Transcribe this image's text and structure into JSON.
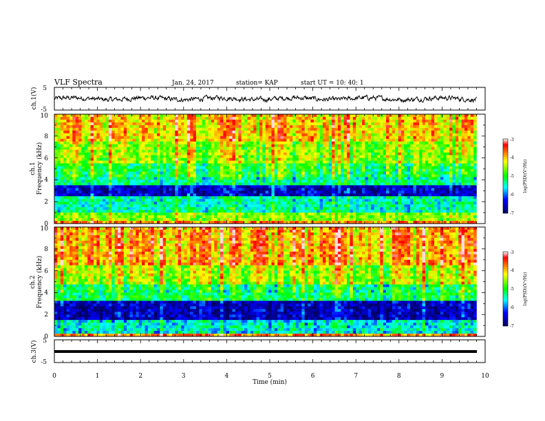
{
  "header": {
    "title": "VLF Spectra",
    "date": "Jan. 24, 2017",
    "station": "station= KAP",
    "start": "start UT =   10: 40: 1"
  },
  "chart_data": [
    {
      "type": "line",
      "name": "ch1-waveform",
      "ylabel": "ch.1(V)",
      "ylim": [
        -5,
        5
      ],
      "ytick_labels": [
        "5",
        "-5"
      ],
      "xlim": [
        0,
        10
      ],
      "note_values": "noisy waveform oscillating roughly between -1 and +1 V across 0-9.8 min"
    },
    {
      "type": "heatmap",
      "name": "ch1-spectrogram",
      "ylabel": "ch.1\nFrequency  (kHz)",
      "ylim": [
        0,
        10
      ],
      "ytick_labels": [
        "0",
        "2",
        "4",
        "6",
        "8",
        "10"
      ],
      "xlim": [
        0,
        9.8
      ],
      "colorbar": {
        "label": "log(PSD)(V²/Hz)",
        "range": [
          -7,
          -3
        ],
        "tick_labels": [
          "-3",
          "-4",
          "-5",
          "-6",
          "-7"
        ]
      },
      "bands": [
        {
          "f_lo": 0,
          "f_hi": 0.3,
          "level": -3.8
        },
        {
          "f_lo": 0.3,
          "f_hi": 1.0,
          "level": -4.6
        },
        {
          "f_lo": 1.0,
          "f_hi": 2.5,
          "level": -5.4
        },
        {
          "f_lo": 2.5,
          "f_hi": 3.4,
          "level": -6.5
        },
        {
          "f_lo": 3.4,
          "f_hi": 4.2,
          "level": -5.3
        },
        {
          "f_lo": 4.2,
          "f_hi": 5.6,
          "level": -5.0
        },
        {
          "f_lo": 5.6,
          "f_hi": 7.5,
          "level": -4.5
        },
        {
          "f_lo": 7.5,
          "f_hi": 10,
          "level": -4.0
        }
      ]
    },
    {
      "type": "heatmap",
      "name": "ch2-spectrogram",
      "ylabel": "ch.2\nFrequency  (kHz)",
      "ylim": [
        0,
        10
      ],
      "ytick_labels": [
        "0",
        "2",
        "4",
        "6",
        "8",
        "10"
      ],
      "xlim": [
        0,
        9.8
      ],
      "colorbar": {
        "label": "log(PSD)(V²/Hz)",
        "range": [
          -7,
          -3
        ],
        "tick_labels": [
          "-3",
          "-4",
          "-5",
          "-6",
          "-7"
        ]
      },
      "bands": [
        {
          "f_lo": 0,
          "f_hi": 0.3,
          "level": -3.8
        },
        {
          "f_lo": 0.3,
          "f_hi": 1.5,
          "level": -5.6
        },
        {
          "f_lo": 1.5,
          "f_hi": 3.2,
          "level": -6.6
        },
        {
          "f_lo": 3.2,
          "f_hi": 4.8,
          "level": -5.2
        },
        {
          "f_lo": 4.8,
          "f_hi": 6.5,
          "level": -4.5
        },
        {
          "f_lo": 6.5,
          "f_hi": 10,
          "level": -3.9
        }
      ]
    },
    {
      "type": "line",
      "name": "ch3-waveform",
      "ylabel": "ch.3(V)",
      "ylim": [
        -5,
        5
      ],
      "ytick_labels": [
        "5",
        "-5"
      ],
      "xlim": [
        0,
        10
      ],
      "xlabel": "Time  (min)",
      "xtick_labels": [
        "0",
        "1",
        "2",
        "3",
        "4",
        "5",
        "6",
        "7",
        "8",
        "9",
        "10"
      ],
      "note_values": "flat line near -1.2 V"
    }
  ],
  "colors": {
    "red": "#ff0000",
    "yellow": "#ffff00",
    "green": "#00ff00",
    "cyan": "#00ffff",
    "blue": "#0000ff",
    "darkblue": "#000080"
  }
}
